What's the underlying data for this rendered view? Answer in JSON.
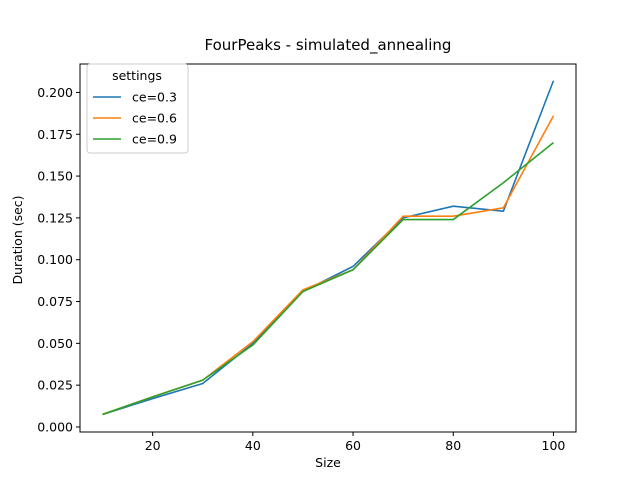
{
  "chart_data": {
    "type": "line",
    "title": "FourPeaks - simulated_annealing",
    "xlabel": "Size",
    "ylabel": "Duration (sec)",
    "x": [
      10,
      20,
      30,
      40,
      50,
      60,
      70,
      80,
      90,
      100
    ],
    "xlim": [
      5.5,
      104.5
    ],
    "ylim": [
      -0.003,
      0.217
    ],
    "xticks": [
      20,
      40,
      60,
      80,
      100
    ],
    "yticks": [
      0.0,
      0.025,
      0.05,
      0.075,
      0.1,
      0.125,
      0.15,
      0.175,
      0.2
    ],
    "ytick_labels": [
      "0.000",
      "0.025",
      "0.050",
      "0.075",
      "0.100",
      "0.125",
      "0.150",
      "0.175",
      "0.200"
    ],
    "grid": false,
    "legend": {
      "title": "settings",
      "placement": "upper-left"
    },
    "series": [
      {
        "name": "ce=0.3",
        "color": "#1f77b4",
        "values": [
          0.0075,
          0.017,
          0.026,
          0.05,
          0.081,
          0.096,
          0.125,
          0.132,
          0.129,
          0.207
        ]
      },
      {
        "name": "ce=0.6",
        "color": "#ff7f0e",
        "values": [
          0.0075,
          0.018,
          0.028,
          0.051,
          0.082,
          0.094,
          0.126,
          0.126,
          0.131,
          0.186
        ]
      },
      {
        "name": "ce=0.9",
        "color": "#2ca02c",
        "values": [
          0.0075,
          0.018,
          0.028,
          0.049,
          0.081,
          0.094,
          0.124,
          0.124,
          0.146,
          0.17
        ]
      }
    ]
  }
}
